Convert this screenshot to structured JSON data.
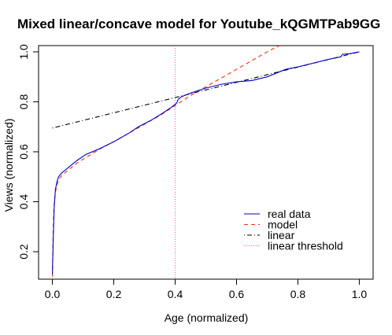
{
  "chart_data": {
    "type": "line",
    "title": "Mixed linear/concave model for Youtube_kQGMTPab9GG",
    "xlabel": "Age (normalized)",
    "ylabel": "Views (normalized)",
    "xlim": [
      -0.045,
      1.045
    ],
    "ylim": [
      0.09,
      1.025
    ],
    "x_ticks": [
      0.0,
      0.2,
      0.4,
      0.6,
      0.8,
      1.0
    ],
    "x_tick_labels": [
      "0.0",
      "0.2",
      "0.4",
      "0.6",
      "0.8",
      "1.0"
    ],
    "y_ticks": [
      0.2,
      0.4,
      0.6,
      0.8,
      1.0
    ],
    "y_tick_labels": [
      "0.2",
      "0.4",
      "0.6",
      "0.8",
      "1.0"
    ],
    "grid": false,
    "legend_position": "bottom-right",
    "threshold_x": 0.4,
    "series": [
      {
        "name": "real data",
        "color": "#0000cc",
        "dash": "solid",
        "x": [
          0.0,
          0.003,
          0.006,
          0.01,
          0.015,
          0.02,
          0.03,
          0.05,
          0.08,
          0.11,
          0.15,
          0.2,
          0.25,
          0.28,
          0.32,
          0.36,
          0.39,
          0.405,
          0.41,
          0.42,
          0.45,
          0.5,
          0.55,
          0.6,
          0.65,
          0.7,
          0.73,
          0.76,
          0.8,
          0.85,
          0.9,
          0.94,
          0.945,
          0.97,
          1.0
        ],
        "y": [
          0.11,
          0.26,
          0.38,
          0.45,
          0.48,
          0.5,
          0.515,
          0.535,
          0.565,
          0.59,
          0.61,
          0.64,
          0.675,
          0.7,
          0.725,
          0.755,
          0.78,
          0.795,
          0.81,
          0.82,
          0.835,
          0.855,
          0.87,
          0.88,
          0.885,
          0.9,
          0.915,
          0.93,
          0.94,
          0.955,
          0.97,
          0.98,
          0.99,
          0.993,
          1.0
        ]
      },
      {
        "name": "model",
        "color": "#ee3311",
        "dash": "dashed",
        "x": [
          0.0,
          0.002,
          0.005,
          0.01,
          0.02,
          0.035,
          0.05,
          0.08,
          0.12,
          0.16,
          0.2,
          0.25,
          0.3,
          0.35,
          0.4,
          0.45,
          0.5,
          0.55,
          0.6,
          0.65,
          0.7,
          0.73,
          0.742
        ],
        "y": [
          0.1,
          0.25,
          0.38,
          0.44,
          0.49,
          0.51,
          0.525,
          0.555,
          0.585,
          0.615,
          0.64,
          0.675,
          0.71,
          0.745,
          0.785,
          0.825,
          0.86,
          0.895,
          0.93,
          0.965,
          1.0,
          1.02,
          1.025
        ]
      },
      {
        "name": "linear",
        "color": "#000000",
        "dash": "dotdash",
        "x": [
          0.0,
          1.0
        ],
        "y": [
          0.695,
          1.0
        ]
      }
    ],
    "legend_entries": [
      {
        "name": "real data",
        "color": "#0000cc",
        "dash": "solid"
      },
      {
        "name": "model",
        "color": "#ee3311",
        "dash": "dashed"
      },
      {
        "name": "linear",
        "color": "#000000",
        "dash": "dotdash"
      },
      {
        "name": "linear threshold",
        "color": "#ee55aa",
        "dash": "dotted"
      }
    ]
  }
}
